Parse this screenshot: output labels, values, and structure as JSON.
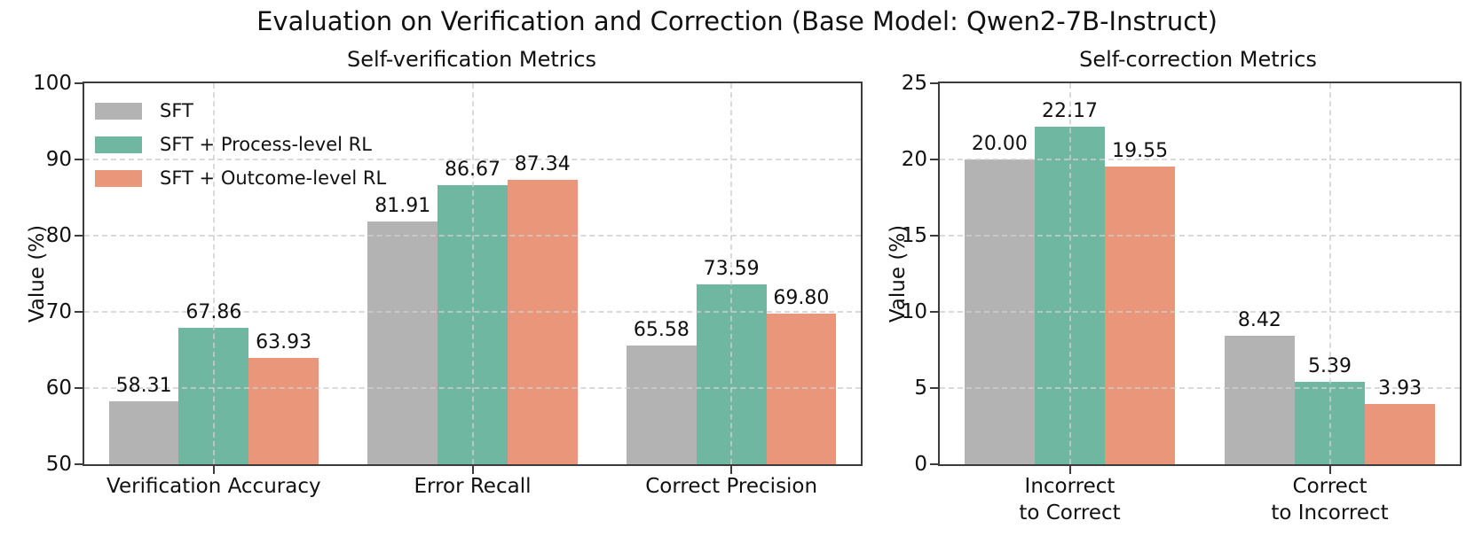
{
  "figure": {
    "title": "Evaluation on Verification and Correction (Base Model: Qwen2-7B-Instruct)"
  },
  "colors": {
    "sft": "#b3b3b3",
    "process_rl": "#6fb7a0",
    "outcome_rl": "#e9967a",
    "grid": "#cecece",
    "spine": "#3c3c3c",
    "text": "#111111"
  },
  "legend": {
    "position": "upper-left-inside-left-plot",
    "entries": [
      {
        "label": "SFT",
        "color": "#b3b3b3"
      },
      {
        "label": "SFT + Process-level RL",
        "color": "#6fb7a0"
      },
      {
        "label": "SFT + Outcome-level RL",
        "color": "#e9967a"
      }
    ]
  },
  "chart_data": [
    {
      "type": "bar",
      "title": "Self-verification Metrics",
      "ylabel": "Value (%)",
      "ylim": [
        50,
        100
      ],
      "yticks": [
        50,
        60,
        70,
        80,
        90,
        100
      ],
      "grid": "dashed-both-axes",
      "show_legend": true,
      "categories": [
        [
          "Verification Accuracy"
        ],
        [
          "Error Recall"
        ],
        [
          "Correct Precision"
        ]
      ],
      "series": [
        {
          "name": "SFT",
          "color": "#b3b3b3",
          "values": [
            58.31,
            81.91,
            65.58
          ],
          "labels": [
            "58.31",
            "81.91",
            "65.58"
          ]
        },
        {
          "name": "SFT + Process-level RL",
          "color": "#6fb7a0",
          "values": [
            67.86,
            86.67,
            73.59
          ],
          "labels": [
            "67.86",
            "86.67",
            "73.59"
          ]
        },
        {
          "name": "SFT + Outcome-level RL",
          "color": "#e9967a",
          "values": [
            63.93,
            87.34,
            69.8
          ],
          "labels": [
            "63.93",
            "87.34",
            "69.80"
          ]
        }
      ]
    },
    {
      "type": "bar",
      "title": "Self-correction Metrics",
      "ylabel": "Value (%)",
      "ylim": [
        0,
        25
      ],
      "yticks": [
        0,
        5,
        10,
        15,
        20,
        25
      ],
      "grid": "dashed-both-axes",
      "show_legend": false,
      "categories": [
        [
          "Incorrect",
          "to Correct"
        ],
        [
          "Correct",
          "to Incorrect"
        ]
      ],
      "series": [
        {
          "name": "SFT",
          "color": "#b3b3b3",
          "values": [
            20.0,
            8.42
          ],
          "labels": [
            "20.00",
            "8.42"
          ]
        },
        {
          "name": "SFT + Process-level RL",
          "color": "#6fb7a0",
          "values": [
            22.17,
            5.39
          ],
          "labels": [
            "22.17",
            "5.39"
          ]
        },
        {
          "name": "SFT + Outcome-level RL",
          "color": "#e9967a",
          "values": [
            19.55,
            3.93
          ],
          "labels": [
            "19.55",
            "3.93"
          ]
        }
      ]
    }
  ]
}
